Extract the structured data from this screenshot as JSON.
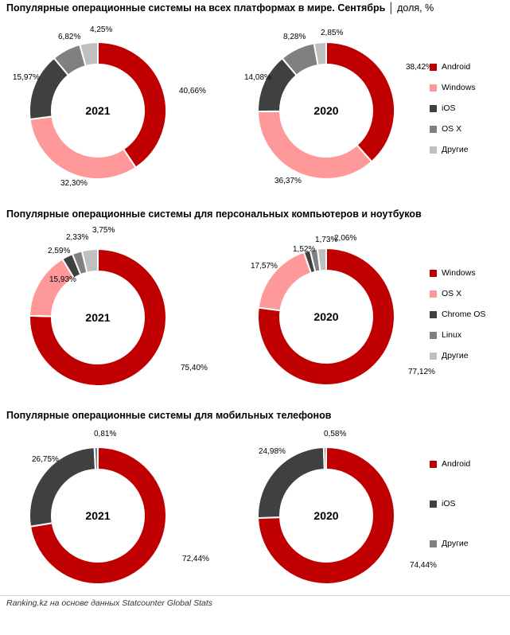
{
  "colors": {
    "dark_red": "#c00000",
    "pink": "#ff9999",
    "dark_gray": "#404040",
    "mid_gray": "#808080",
    "light_gray": "#bfbfbf"
  },
  "footer": "Ranking.kz на основе данных Statcounter Global Stats",
  "sections": [
    {
      "title": "Популярные операционные системы на всех платформах в мире. Сентябрь",
      "unit": "│ доля, %",
      "legend": [
        {
          "label": "Android",
          "color": "#c00000"
        },
        {
          "label": "Windows",
          "color": "#ff9999"
        },
        {
          "label": "iOS",
          "color": "#404040"
        },
        {
          "label": "OS X",
          "color": "#808080"
        },
        {
          "label": "Другие",
          "color": "#bfbfbf"
        }
      ]
    },
    {
      "title": "Популярные операционные системы для персональных компьютеров и ноутбуков",
      "unit": "",
      "legend": [
        {
          "label": "Windows",
          "color": "#c00000"
        },
        {
          "label": "OS X",
          "color": "#ff9999"
        },
        {
          "label": "Chrome OS",
          "color": "#404040"
        },
        {
          "label": "Linux",
          "color": "#808080"
        },
        {
          "label": "Другие",
          "color": "#bfbfbf"
        }
      ]
    },
    {
      "title": "Популярные операционные системы для мобильных телефонов",
      "unit": "",
      "legend": [
        {
          "label": "Android",
          "color": "#c00000"
        },
        {
          "label": "iOS",
          "color": "#404040"
        },
        {
          "label": "Другие",
          "color": "#808080"
        }
      ]
    }
  ],
  "chart_data": [
    {
      "type": "pie",
      "title": "2021",
      "categories": [
        "Android",
        "Windows",
        "iOS",
        "OS X",
        "Другие"
      ],
      "values": [
        40.66,
        32.3,
        15.97,
        6.82,
        4.25
      ],
      "labels": [
        "40,66%",
        "32,30%",
        "15,97%",
        "6,82%",
        "4,25%"
      ],
      "colors": [
        "#c00000",
        "#ff9999",
        "#404040",
        "#808080",
        "#bfbfbf"
      ]
    },
    {
      "type": "pie",
      "title": "2020",
      "categories": [
        "Android",
        "Windows",
        "iOS",
        "OS X",
        "Другие"
      ],
      "values": [
        38.42,
        36.37,
        14.08,
        8.28,
        2.85
      ],
      "labels": [
        "38,42%",
        "36,37%",
        "14,08%",
        "8,28%",
        "2,85%"
      ],
      "colors": [
        "#c00000",
        "#ff9999",
        "#404040",
        "#808080",
        "#bfbfbf"
      ]
    },
    {
      "type": "pie",
      "title": "2021",
      "categories": [
        "Windows",
        "OS X",
        "Chrome OS",
        "Linux",
        "Другие"
      ],
      "values": [
        75.4,
        15.93,
        2.59,
        2.33,
        3.75
      ],
      "labels": [
        "75,40%",
        "15,93%",
        "2,59%",
        "2,33%",
        "3,75%"
      ],
      "colors": [
        "#c00000",
        "#ff9999",
        "#404040",
        "#808080",
        "#bfbfbf"
      ]
    },
    {
      "type": "pie",
      "title": "2020",
      "categories": [
        "Windows",
        "OS X",
        "Chrome OS",
        "Linux",
        "Другие"
      ],
      "values": [
        77.12,
        17.57,
        1.52,
        1.73,
        2.06
      ],
      "labels": [
        "77,12%",
        "17,57%",
        "1,52%",
        "1,73%",
        "2,06%"
      ],
      "colors": [
        "#c00000",
        "#ff9999",
        "#404040",
        "#808080",
        "#bfbfbf"
      ]
    },
    {
      "type": "pie",
      "title": "2021",
      "categories": [
        "Android",
        "iOS",
        "Другие"
      ],
      "values": [
        72.44,
        26.75,
        0.81
      ],
      "labels": [
        "72,44%",
        "26,75%",
        "0,81%"
      ],
      "colors": [
        "#c00000",
        "#404040",
        "#808080"
      ]
    },
    {
      "type": "pie",
      "title": "2020",
      "categories": [
        "Android",
        "iOS",
        "Другие"
      ],
      "values": [
        74.44,
        24.98,
        0.58
      ],
      "labels": [
        "74,44%",
        "24,98%",
        "0,58%"
      ],
      "colors": [
        "#c00000",
        "#404040",
        "#808080"
      ]
    }
  ]
}
